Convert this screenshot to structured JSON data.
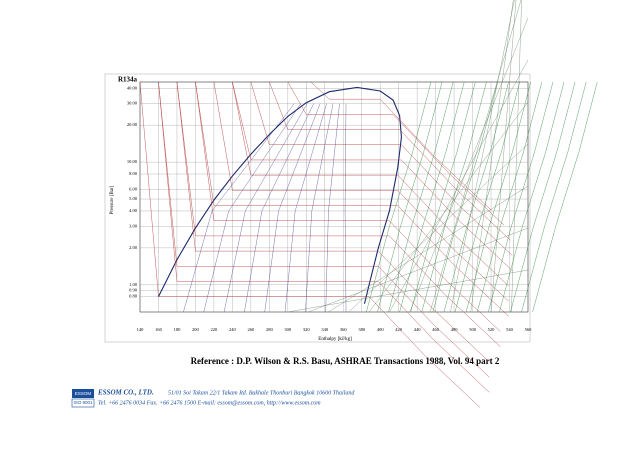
{
  "figure": {
    "label": "R134a",
    "y_axis_label": "Pressure [Bar]",
    "x_axis_label": "Enthalpy [kJ/kg]",
    "xlim": [
      140,
      560
    ],
    "xticks": [
      140,
      160,
      180,
      200,
      220,
      240,
      260,
      280,
      300,
      320,
      340,
      360,
      380,
      400,
      420,
      440,
      460,
      480,
      500,
      520,
      540,
      560
    ],
    "ylim": [
      0.6,
      45
    ],
    "log_y": true,
    "yticks": [
      {
        "value": 40,
        "label": "40.00"
      },
      {
        "value": 30,
        "label": "30.00"
      },
      {
        "value": 20,
        "label": "20.00"
      },
      {
        "value": 10,
        "label": "10.00"
      },
      {
        "value": 8,
        "label": "8.00"
      },
      {
        "value": 6,
        "label": "6.00"
      },
      {
        "value": 5,
        "label": "5.00"
      },
      {
        "value": 4,
        "label": "4.00"
      },
      {
        "value": 3,
        "label": "3.00"
      },
      {
        "value": 2,
        "label": "2.00"
      },
      {
        "value": 1,
        "label": "1.00"
      },
      {
        "value": 0.9,
        "label": "0.90"
      },
      {
        "value": 0.8,
        "label": "0.80"
      }
    ]
  },
  "caption": "Reference : D.P. Wilson & R.S. Basu, ASHRAE Transactions 1988, Vol. 94 part 2",
  "footer": {
    "logo_top": "ESSOM",
    "logo_bottom": "ISO 9001",
    "company": "ESSOM CO., LTD.",
    "address": "51/01 Soi Takam 22/1 Takam Rd. Bakhale Thonburi Bangkok 10600 Thailand",
    "contact": "Tel. +66 2476 0034 Fax. +66 2476 1500 E-mail: essom@essom.com,  http://www.essom.com"
  }
}
